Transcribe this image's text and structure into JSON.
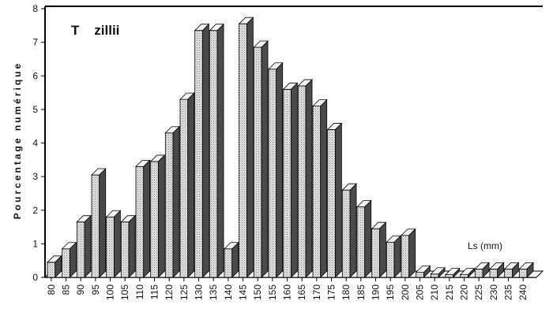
{
  "chart_data": {
    "type": "bar",
    "title": "T    zillii",
    "ylabel": "Pourcentage numérique",
    "xunit_label": "Ls (mm)",
    "ylim": [
      0,
      8
    ],
    "yticks": [
      "0",
      "1",
      "2",
      "3",
      "4",
      "5",
      "6",
      "7",
      "8"
    ],
    "categories": [
      "80",
      "85",
      "90",
      "95",
      "100",
      "105",
      "110",
      "115",
      "120",
      "125",
      "130",
      "135",
      "140",
      "145",
      "150",
      "155",
      "160",
      "165",
      "170",
      "175",
      "180",
      "185",
      "190",
      "195",
      "200",
      "205",
      "210",
      "215",
      "220",
      "225",
      "230",
      "235",
      "240"
    ],
    "values": [
      0.45,
      0.85,
      1.65,
      3.05,
      1.8,
      1.65,
      3.3,
      3.45,
      4.3,
      5.3,
      7.35,
      7.35,
      0.85,
      7.55,
      6.85,
      6.2,
      5.6,
      5.7,
      5.1,
      4.4,
      2.6,
      2.1,
      1.45,
      1.05,
      1.25,
      0.15,
      0.1,
      0.08,
      0.08,
      0.25,
      0.25,
      0.25,
      0.25
    ],
    "grid": false,
    "colors": {
      "bar_face": "#d9d9d9",
      "bar_side": "#4a4a4a",
      "bar_top": "#f4f4f4",
      "outline": "#000000"
    }
  }
}
